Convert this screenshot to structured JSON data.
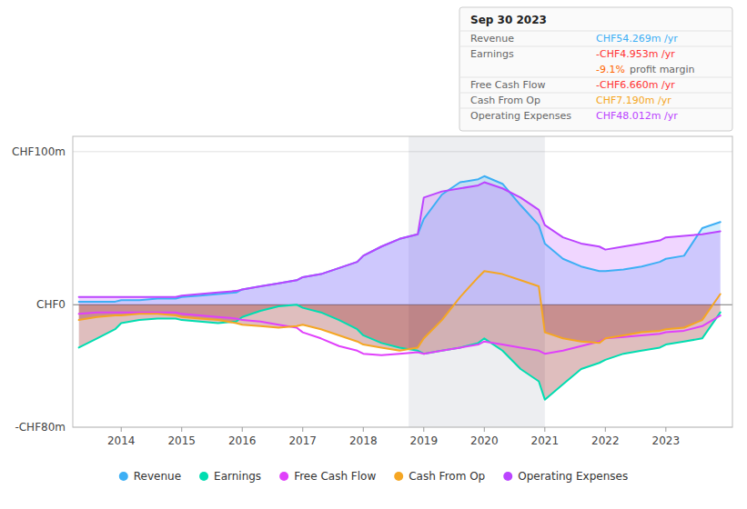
{
  "chart_data": {
    "type": "line",
    "x": [
      2013.3,
      2013.6,
      2013.9,
      2014.0,
      2014.3,
      2014.6,
      2014.9,
      2015.0,
      2015.3,
      2015.6,
      2015.9,
      2016.0,
      2016.3,
      2016.6,
      2016.9,
      2017.0,
      2017.3,
      2017.6,
      2017.9,
      2018.0,
      2018.3,
      2018.6,
      2018.9,
      2019.0,
      2019.3,
      2019.6,
      2019.9,
      2020.0,
      2020.3,
      2020.6,
      2020.9,
      2021.0,
      2021.3,
      2021.6,
      2021.9,
      2022.0,
      2022.3,
      2022.6,
      2022.9,
      2023.0,
      2023.3,
      2023.6,
      2023.9
    ],
    "series": [
      {
        "name": "Revenue",
        "color": "#3daff5",
        "type": "area",
        "values": [
          2,
          2,
          2,
          3,
          3,
          4,
          4,
          5,
          6,
          7,
          8,
          10,
          12,
          14,
          16,
          18,
          20,
          24,
          28,
          32,
          38,
          43,
          46,
          56,
          72,
          80,
          82,
          84,
          79,
          65,
          52,
          40,
          30,
          25,
          22,
          22,
          23,
          25,
          28,
          30,
          32,
          50,
          54
        ]
      },
      {
        "name": "Earnings",
        "color": "#00ddb0",
        "type": "negative-area",
        "values": [
          -28,
          -22,
          -16,
          -12,
          -10,
          -9,
          -9,
          -10,
          -11,
          -12,
          -11,
          -8,
          -4,
          -1,
          0,
          -2,
          -5,
          -10,
          -16,
          -20,
          -25,
          -28,
          -30,
          -32,
          -30,
          -28,
          -25,
          -22,
          -30,
          -42,
          -50,
          -62,
          -52,
          -42,
          -38,
          -36,
          -32,
          -30,
          -28,
          -26,
          -24,
          -22,
          -5
        ]
      },
      {
        "name": "Free Cash Flow",
        "color": "#e040fb",
        "type": "line",
        "values": [
          -6,
          -5,
          -5,
          -5,
          -5,
          -5,
          -5,
          -6,
          -7,
          -8,
          -9,
          -10,
          -11,
          -13,
          -15,
          -18,
          -22,
          -27,
          -30,
          -32,
          -33,
          -32,
          -31,
          -32,
          -30,
          -28,
          -26,
          -24,
          -26,
          -28,
          -30,
          -32,
          -30,
          -27,
          -24,
          -22,
          -21,
          -20,
          -19,
          -18,
          -17,
          -14,
          -7
        ]
      },
      {
        "name": "Cash From Op",
        "color": "#f5a623",
        "type": "negative-area",
        "values": [
          -10,
          -8,
          -7,
          -7,
          -6,
          -6,
          -7,
          -8,
          -9,
          -10,
          -12,
          -13,
          -14,
          -15,
          -14,
          -13,
          -16,
          -20,
          -24,
          -26,
          -28,
          -30,
          -28,
          -22,
          -10,
          5,
          18,
          22,
          20,
          16,
          12,
          -18,
          -22,
          -24,
          -25,
          -22,
          -20,
          -18,
          -17,
          -16,
          -15,
          -10,
          7
        ]
      },
      {
        "name": "Operating Expenses",
        "color": "#bb44ff",
        "type": "area",
        "values": [
          5,
          5,
          5,
          5,
          5,
          5,
          5,
          6,
          7,
          8,
          9,
          10,
          12,
          14,
          16,
          18,
          20,
          24,
          28,
          32,
          38,
          43,
          46,
          70,
          74,
          76,
          78,
          80,
          76,
          70,
          62,
          52,
          44,
          40,
          38,
          36,
          38,
          40,
          42,
          44,
          45,
          46,
          48
        ]
      }
    ],
    "negative_color": "#8b1414",
    "highlight": [
      2018.75,
      2021.0
    ],
    "xlim": [
      2013.2,
      2024.1
    ],
    "xticks": [
      2014,
      2015,
      2016,
      2017,
      2018,
      2019,
      2020,
      2021,
      2022,
      2023
    ],
    "ylim": [
      -80,
      110
    ],
    "yticks": [
      {
        "value": -80,
        "label": "-CHF80m"
      },
      {
        "value": 0,
        "label": "CHF0"
      },
      {
        "value": 100,
        "label": "CHF100m"
      }
    ],
    "grid": true,
    "legend": "bottom",
    "annotations": [
      {
        "label": "Sep 30 2023"
      },
      {
        "label": "Revenue",
        "value": "CHF54.269m /yr",
        "color": "#3daff5"
      },
      {
        "label": "Earnings",
        "value": "-CHF4.953m /yr",
        "color": "#ff3333"
      },
      {
        "value": "-9.1%",
        "color": "#ff6600",
        "note": "profit margin"
      },
      {
        "label": "Free Cash Flow",
        "value": "-CHF6.660m /yr",
        "color": "#ff3333"
      },
      {
        "label": "Cash From Op",
        "value": "CHF7.190m /yr",
        "color": "#f5a623"
      },
      {
        "label": "Operating Expenses",
        "value": "CHF48.012m /yr",
        "color": "#bb44ff"
      }
    ]
  }
}
